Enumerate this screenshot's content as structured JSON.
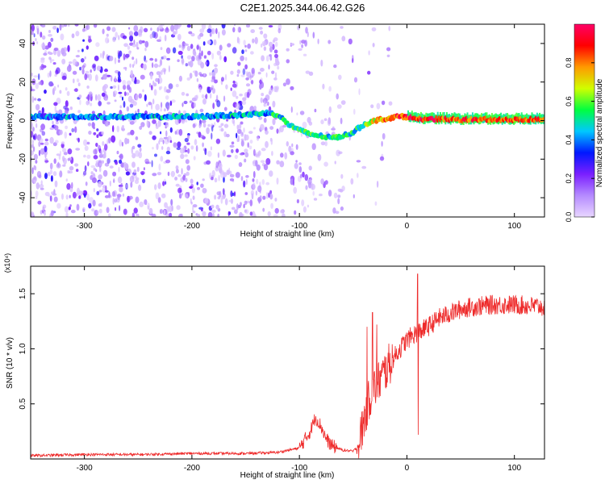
{
  "figure_title": "C2E1.2025.344.06.42.G26",
  "colors": {
    "snr_line": "#ee2a2a",
    "axis": "#000000",
    "colorbar_stops": [
      "#e8d6ff",
      "#b58bff",
      "#7a1fff",
      "#0018ff",
      "#00c8ff",
      "#00ff40",
      "#d0ff00",
      "#ff9900",
      "#ff0000",
      "#ff0066"
    ]
  },
  "chart_data": [
    {
      "type": "heatmap",
      "title": "C2E1.2025.344.06.42.G26",
      "xlabel": "Height of straight line (km)",
      "ylabel": "Frequency (Hz)",
      "xlim": [
        -350,
        128
      ],
      "ylim": [
        -50,
        50
      ],
      "x_ticks": [
        -300,
        -200,
        -100,
        0,
        100
      ],
      "x_tick_labels": [
        "-300",
        "-200",
        "-100",
        "0",
        "100"
      ],
      "y_ticks": [
        -40,
        -20,
        0,
        20,
        40
      ],
      "y_tick_labels": [
        "-40",
        "-20",
        "0",
        "20",
        "40"
      ],
      "colorbar": {
        "label": "Normalized spectral amplitude",
        "range": [
          0.0,
          1.0
        ],
        "ticks": [
          0.0,
          0.2,
          0.4,
          0.6,
          0.8
        ],
        "tick_labels": [
          "0.0",
          "0.2",
          "0.4",
          "0.6",
          "0.8"
        ]
      },
      "ridge": {
        "description": "dominant frequency trace",
        "x": [
          -350,
          -300,
          -250,
          -200,
          -150,
          -130,
          -120,
          -110,
          -100,
          -90,
          -80,
          -70,
          -60,
          -50,
          -40,
          -30,
          -20,
          -10,
          0,
          10,
          50,
          100,
          128
        ],
        "y": [
          2,
          2,
          2,
          2,
          3,
          4,
          3,
          -2,
          -5,
          -7,
          -8,
          -9,
          -8,
          -6,
          -2,
          0,
          1,
          2,
          2,
          1,
          0.5,
          0.5,
          0.5
        ],
        "amplitude": [
          0.35,
          0.4,
          0.4,
          0.42,
          0.45,
          0.45,
          0.48,
          0.5,
          0.5,
          0.52,
          0.52,
          0.5,
          0.48,
          0.5,
          0.55,
          0.7,
          0.8,
          0.85,
          0.9,
          0.9,
          0.85,
          0.85,
          0.85
        ]
      }
    },
    {
      "type": "line",
      "xlabel": "Height of straight line (km)",
      "ylabel": "SNR (10 * v/v)",
      "y_scale_label": "(x10⁴)",
      "xlim": [
        -350,
        128
      ],
      "ylim": [
        0,
        1.75
      ],
      "x_ticks": [
        -300,
        -200,
        -100,
        0,
        100
      ],
      "x_tick_labels": [
        "-300",
        "-200",
        "-100",
        "0",
        "100"
      ],
      "y_ticks": [
        0.5,
        1.0,
        1.5
      ],
      "y_tick_labels": [
        "0.5",
        "1.0",
        "1.5"
      ],
      "series": [
        {
          "name": "SNR",
          "x": [
            -350,
            -300,
            -250,
            -200,
            -150,
            -120,
            -100,
            -90,
            -85,
            -80,
            -75,
            -70,
            -60,
            -50,
            -45,
            -40,
            -35,
            -30,
            -25,
            -20,
            -15,
            -10,
            -5,
            0,
            5,
            10,
            20,
            30,
            40,
            50,
            60,
            80,
            100,
            128
          ],
          "y": [
            0.03,
            0.04,
            0.04,
            0.05,
            0.05,
            0.06,
            0.1,
            0.25,
            0.38,
            0.3,
            0.18,
            0.12,
            0.08,
            0.07,
            0.12,
            0.35,
            0.55,
            0.65,
            0.72,
            0.8,
            0.88,
            0.95,
            1.02,
            1.08,
            1.12,
            1.15,
            1.2,
            1.28,
            1.32,
            1.36,
            1.38,
            1.4,
            1.4,
            1.38
          ],
          "noise": 0.09
        }
      ],
      "spikes": [
        {
          "x": 10,
          "y": 1.68
        },
        {
          "x": 10.5,
          "y": 0.22
        },
        {
          "x": -37,
          "y": 1.2
        },
        {
          "x": -32,
          "y": 1.33
        },
        {
          "x": -28,
          "y": 1.22
        }
      ]
    }
  ]
}
